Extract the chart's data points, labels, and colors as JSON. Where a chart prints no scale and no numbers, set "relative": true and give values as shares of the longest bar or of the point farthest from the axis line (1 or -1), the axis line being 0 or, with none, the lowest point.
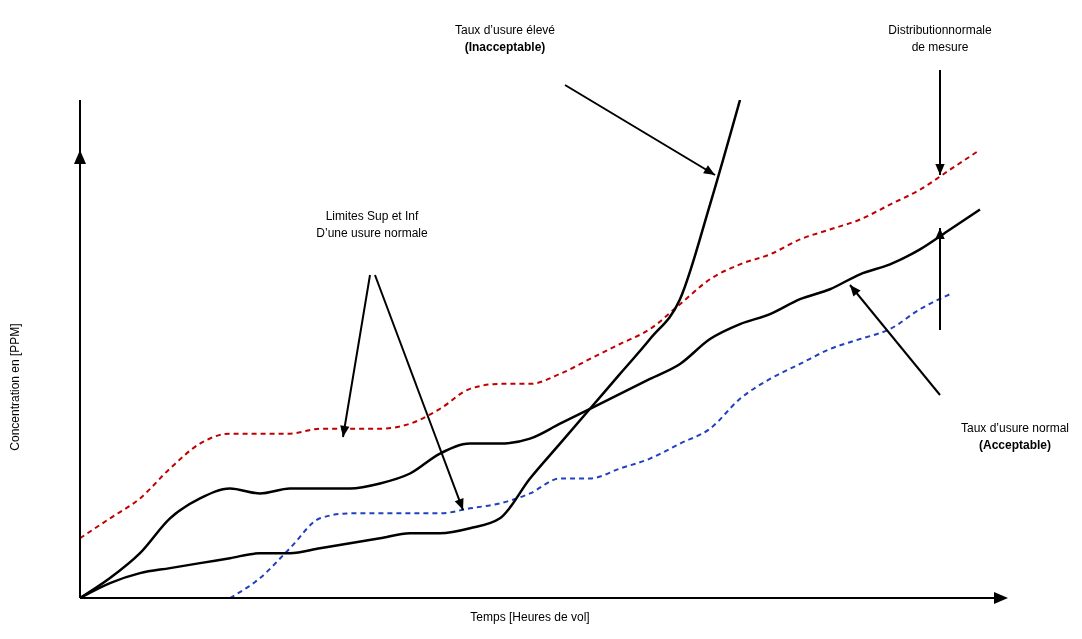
{
  "chart_data": {
    "type": "line",
    "relative": true,
    "xlabel": "Temps [Heures de vol]",
    "ylabel": "Concentration en [PPM]",
    "categories": [
      null,
      null,
      null,
      null,
      null,
      null,
      null,
      null,
      null,
      null,
      null,
      null,
      null,
      null,
      null,
      null,
      null,
      null,
      null,
      null,
      null,
      null,
      null,
      null,
      null,
      null,
      null,
      null,
      null,
      null,
      null
    ],
    "series": [
      {
        "color": "#c00000",
        "line_style": "dashed",
        "values": [
          0.12,
          0.16,
          0.2,
          0.26,
          0.31,
          0.33,
          0.33,
          0.33,
          0.34,
          0.34,
          0.34,
          0.35,
          0.38,
          0.42,
          0.43,
          0.43,
          0.45,
          0.48,
          0.51,
          0.54,
          0.59,
          0.64,
          0.67,
          0.69,
          0.72,
          0.74,
          0.76,
          0.79,
          0.82,
          0.86,
          0.9
        ]
      },
      {
        "color": "#2040c0",
        "line_style": "dashed",
        "values": [
          null,
          null,
          null,
          null,
          null,
          0,
          0.04,
          0.1,
          0.16,
          0.17,
          0.17,
          0.17,
          0.17,
          0.18,
          0.19,
          0.21,
          0.24,
          0.24,
          0.26,
          0.28,
          0.31,
          0.34,
          0.4,
          0.44,
          0.47,
          0.5,
          0.52,
          0.54,
          0.58,
          0.61,
          null
        ]
      },
      {
        "color": "#000000",
        "line_style": "solid",
        "values": [
          0,
          0.04,
          0.09,
          0.16,
          0.2,
          0.22,
          0.21,
          0.22,
          0.22,
          0.22,
          0.23,
          0.25,
          0.29,
          0.31,
          0.31,
          0.32,
          0.35,
          0.38,
          0.41,
          0.44,
          0.47,
          0.52,
          0.55,
          0.57,
          0.6,
          0.62,
          0.65,
          0.67,
          0.7,
          0.74,
          0.78
        ]
      },
      {
        "color": "#000000",
        "line_style": "solid",
        "values": [
          0,
          0.03,
          0.05,
          0.06,
          0.07,
          0.08,
          0.09,
          0.09,
          0.1,
          0.11,
          0.12,
          0.13,
          0.13,
          0.14,
          0.16,
          0.24,
          0.31,
          0.38,
          0.45,
          0.52,
          0.6,
          0.79,
          1.0,
          null,
          null,
          null,
          null,
          null,
          null,
          null,
          null
        ]
      }
    ],
    "annotations": [
      "Taux d’usure élevé\n(Inacceptable)",
      "Distributionnormale\nde mesure",
      "Limites Sup et Inf\nD’une usure normale",
      "Taux d’usure normal\n(Acceptable)"
    ]
  }
}
